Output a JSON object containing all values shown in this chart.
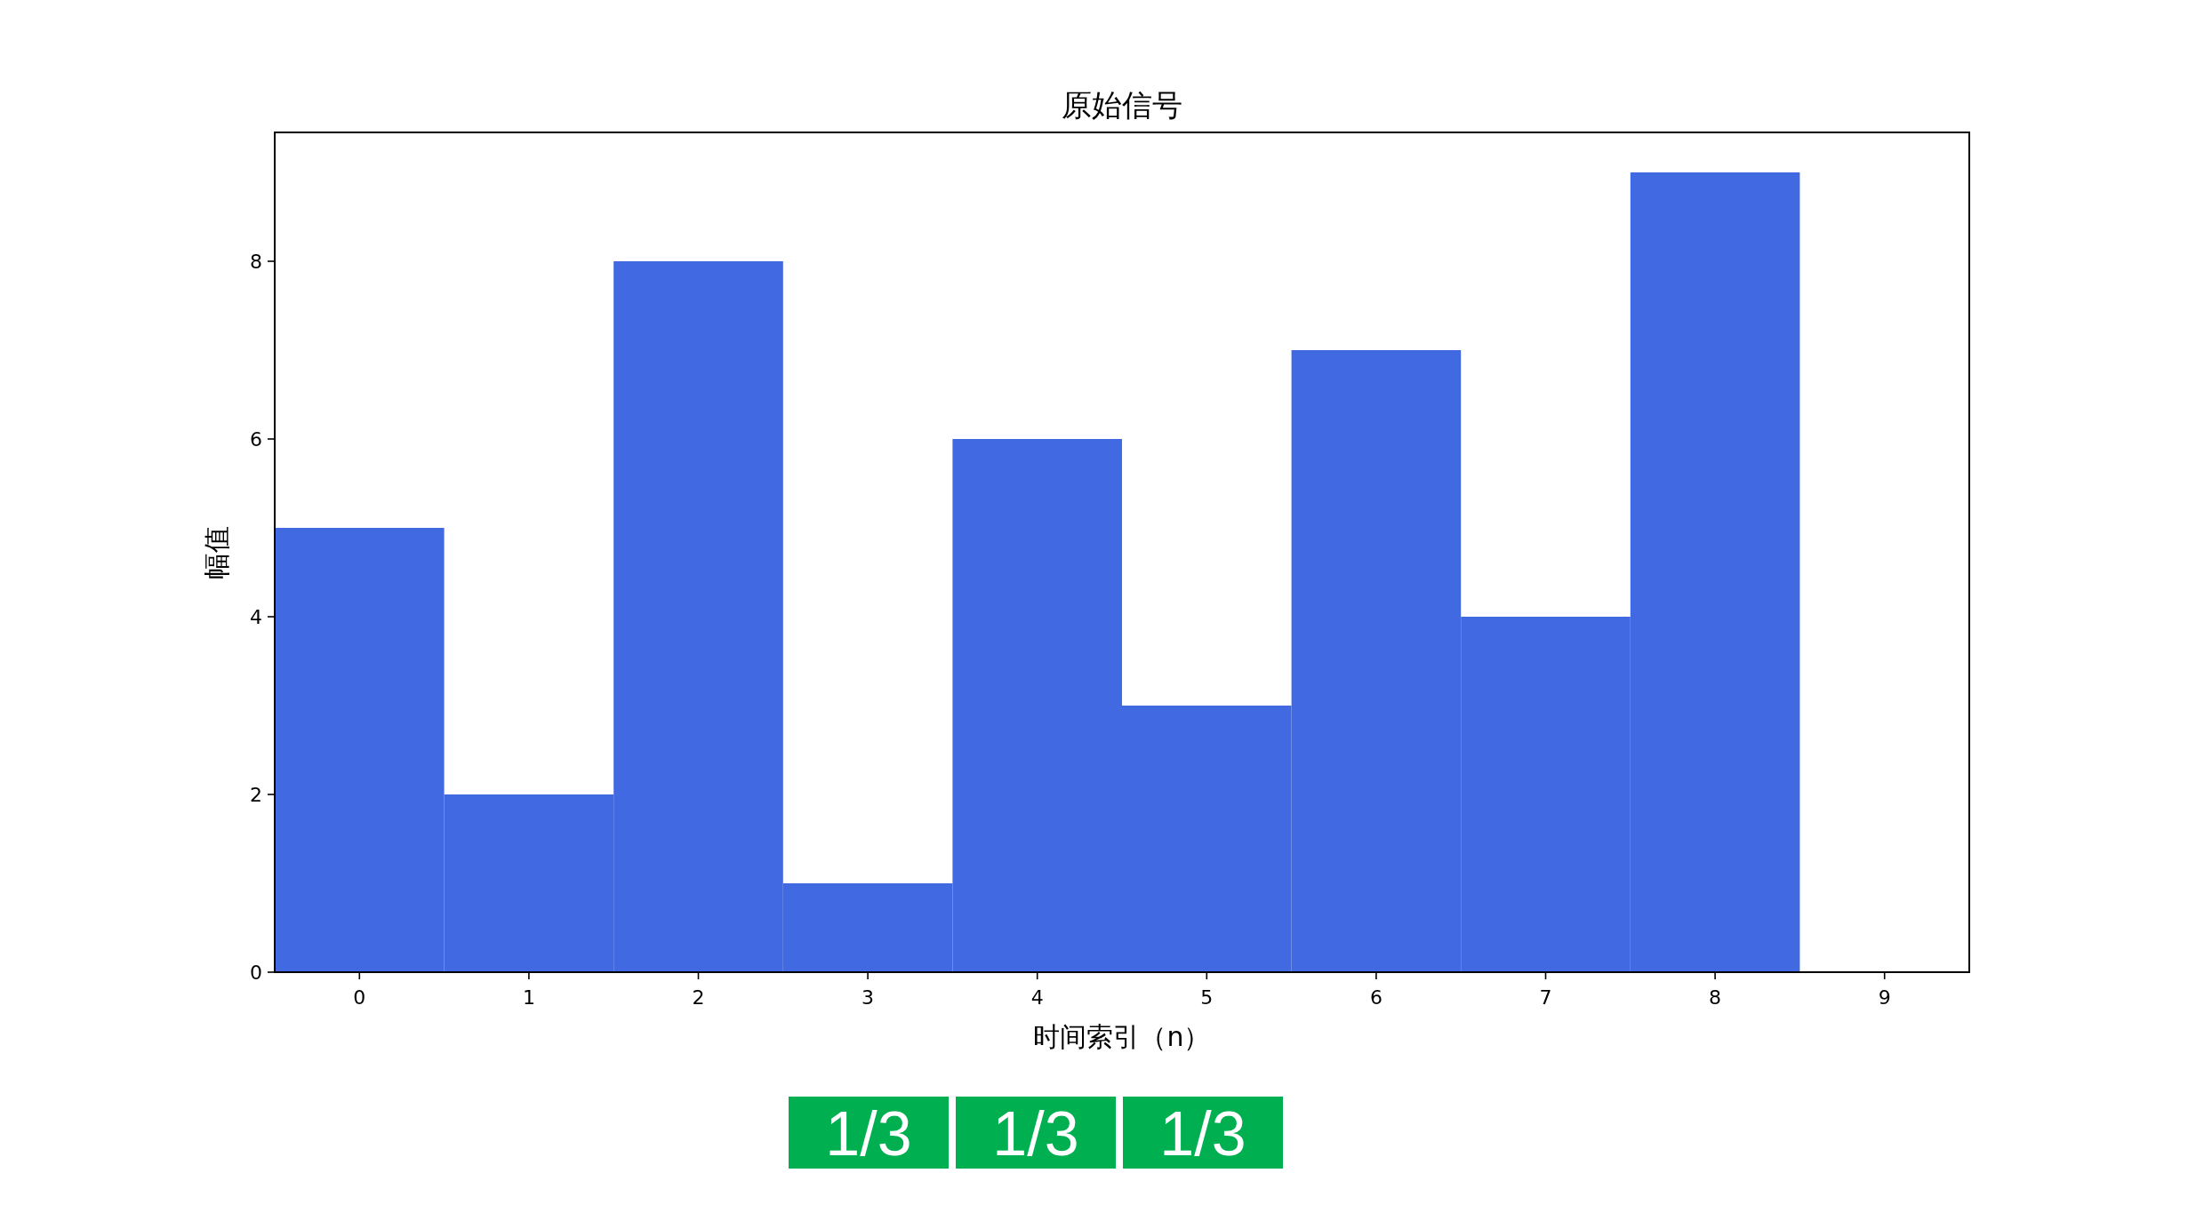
{
  "chart_data": {
    "type": "bar",
    "title": "原始信号",
    "xlabel": "时间索引（n）",
    "ylabel": "幅值",
    "x": [
      0,
      1,
      2,
      3,
      4,
      5,
      6,
      7,
      8
    ],
    "values": [
      5,
      2,
      8,
      1,
      6,
      3,
      7,
      4,
      9
    ],
    "color": "#4169e1",
    "xlim": [
      -0.5,
      9.5
    ],
    "xticks": [
      0,
      1,
      2,
      3,
      4,
      5,
      6,
      7,
      8,
      9
    ],
    "ylim": [
      0,
      9.45
    ],
    "yticks": [
      0,
      2,
      4,
      6,
      8
    ],
    "annotations": [
      "1/3",
      "1/3",
      "1/3"
    ]
  }
}
